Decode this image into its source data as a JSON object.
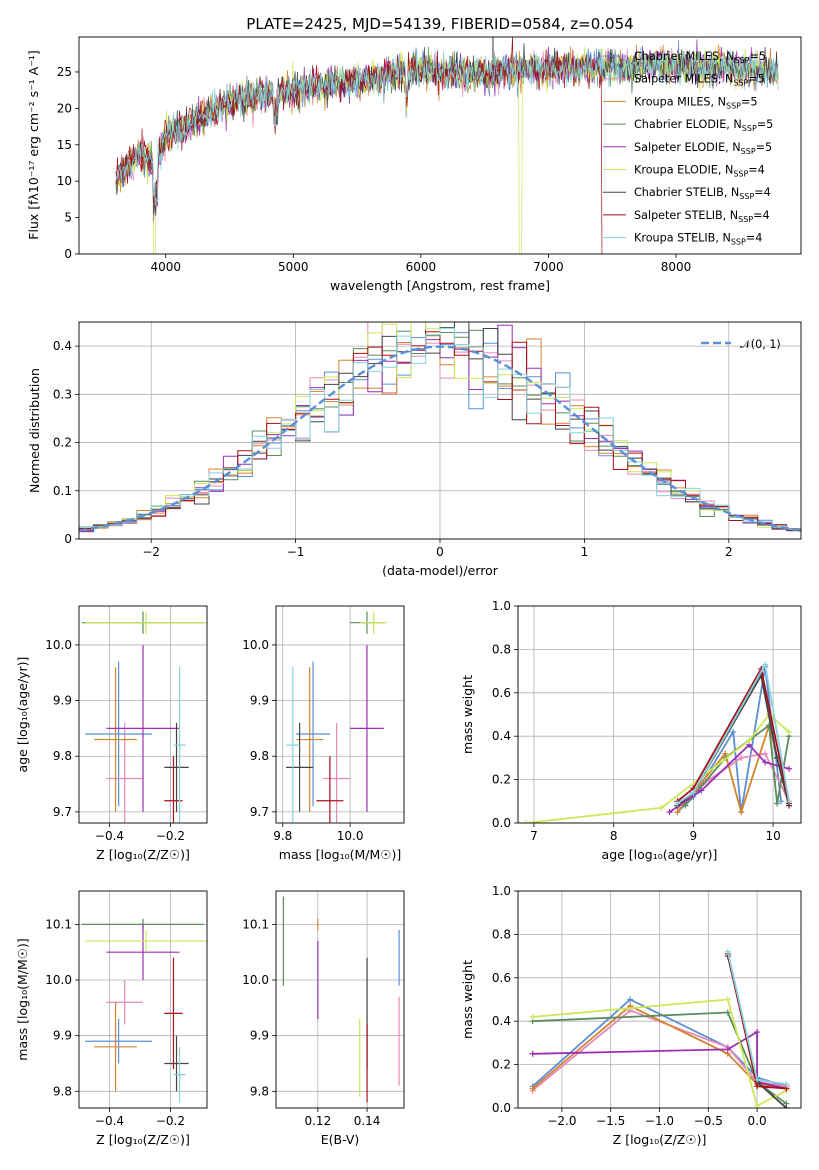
{
  "chart_data": [
    {
      "type": "line",
      "title": "PLATE=2425, MJD=54139, FIBERID=0584, z=0.054",
      "xlabel": "wavelength [Angstrom, rest frame]",
      "ylabel_main": "Flux [f",
      "ylabel_sub": "λ",
      "ylabel_mid": "10",
      "ylabel_exp": "−17",
      "ylabel_tail": " erg cm",
      "ylabel_exp2": "−2",
      "ylabel_tail2": " s",
      "ylabel_exp3": "−1",
      "ylabel_tail3": " A",
      "ylabel_exp4": "−1",
      "ylabel_end": "]",
      "xlim": [
        3320,
        8980
      ],
      "ylim": [
        0,
        29.8
      ],
      "xticks": [
        4000,
        5000,
        6000,
        7000,
        8000
      ],
      "yticks": [
        0,
        5,
        10,
        15,
        20,
        25
      ],
      "grid": false,
      "legend_position": "top-right",
      "continuum": [
        [
          3600,
          10
        ],
        [
          3700,
          12
        ],
        [
          3800,
          14
        ],
        [
          3900,
          12
        ],
        [
          4000,
          16
        ],
        [
          4200,
          18
        ],
        [
          4400,
          20
        ],
        [
          4600,
          21.5
        ],
        [
          4800,
          22
        ],
        [
          5000,
          22.5
        ],
        [
          5200,
          23
        ],
        [
          5400,
          23.5
        ],
        [
          5600,
          24
        ],
        [
          5800,
          25
        ],
        [
          6000,
          25.5
        ],
        [
          6200,
          25
        ],
        [
          6400,
          24.5
        ],
        [
          6600,
          25
        ],
        [
          6800,
          25.3
        ],
        [
          7000,
          25.5
        ],
        [
          7200,
          25.5
        ],
        [
          7400,
          25.8
        ],
        [
          7600,
          25.5
        ],
        [
          7800,
          26
        ],
        [
          8000,
          25.8
        ],
        [
          8200,
          25.5
        ],
        [
          8400,
          26
        ],
        [
          8600,
          25.3
        ],
        [
          8800,
          25
        ]
      ],
      "series": [
        {
          "name": "Chabrier MILES",
          "nssp": "5",
          "color": "#5b8fd6"
        },
        {
          "name": "Salpeter MILES",
          "nssp": "5",
          "color": "#e889b8"
        },
        {
          "name": "Kroupa MILES",
          "nssp": "5",
          "color": "#d5832e"
        },
        {
          "name": "Chabrier ELODIE",
          "nssp": "5",
          "color": "#5b8c5b"
        },
        {
          "name": "Salpeter ELODIE",
          "nssp": "5",
          "color": "#9b2fb5"
        },
        {
          "name": "Kroupa ELODIE",
          "nssp": "4",
          "color": "#cbe85a"
        },
        {
          "name": "Chabrier STELIB",
          "nssp": "4",
          "color": "#444444"
        },
        {
          "name": "Salpeter STELIB",
          "nssp": "4",
          "color": "#a8101a"
        },
        {
          "name": "Kroupa STELIB",
          "nssp": "4",
          "color": "#86d2da"
        }
      ]
    },
    {
      "type": "line",
      "title": "",
      "xlabel": "(data-model)/error",
      "ylabel": "Normed distribution",
      "xlim": [
        -2.5,
        2.5
      ],
      "ylim": [
        0,
        0.45
      ],
      "xticks": [
        -2,
        -1,
        0,
        1,
        2
      ],
      "yticks": [
        0.0,
        0.1,
        0.2,
        0.3,
        0.4
      ],
      "grid": true,
      "legend_position": "top-right",
      "legend_label": "𝒩(0, 1)",
      "gaussian": {
        "mean": 0,
        "sigma": 1,
        "color": "#5b8fd6"
      },
      "bin_width": 0.1
    },
    {
      "type": "scatter",
      "title": "",
      "xlabel": "Z [log₁₀(Z/Z☉)]",
      "ylabel": "age  [log₁₀(age/yr)]",
      "xlim": [
        -0.5,
        -0.08
      ],
      "ylim": [
        9.68,
        10.07
      ],
      "xticks": [
        -0.4,
        -0.2
      ],
      "yticks": [
        9.7,
        9.8,
        9.9,
        10.0
      ],
      "grid": true,
      "points": [
        {
          "x": -0.37,
          "y": 9.84,
          "xerr": 0.11,
          "yerr": 0.13
        },
        {
          "x": -0.35,
          "y": 9.76,
          "xerr": 0.06,
          "yerr": 0.1
        },
        {
          "x": -0.38,
          "y": 9.83,
          "xerr": 0.07,
          "yerr": 0.13
        },
        {
          "x": -0.29,
          "y": 10.04,
          "xerr": 0.2,
          "yerr": 0.02
        },
        {
          "x": -0.29,
          "y": 9.85,
          "xerr": 0.12,
          "yerr": 0.15
        },
        {
          "x": -0.28,
          "y": 10.04,
          "xerr": 0.2,
          "yerr": 0.02
        },
        {
          "x": -0.18,
          "y": 9.78,
          "xerr": 0.04,
          "yerr": 0.08
        },
        {
          "x": -0.19,
          "y": 9.72,
          "xerr": 0.03,
          "yerr": 0.08
        },
        {
          "x": -0.17,
          "y": 9.82,
          "xerr": 0.02,
          "yerr": 0.14
        }
      ]
    },
    {
      "type": "scatter",
      "title": "",
      "xlabel": "mass [log₁₀(M/M☉)]",
      "ylabel": "",
      "xlim": [
        9.78,
        10.16
      ],
      "ylim": [
        9.68,
        10.07
      ],
      "xticks": [
        9.8,
        10.0
      ],
      "yticks": [
        9.7,
        9.8,
        9.9,
        10.0
      ],
      "grid": true,
      "points": [
        {
          "x": 9.89,
          "y": 9.84,
          "xerr": 0.05,
          "yerr": 0.13
        },
        {
          "x": 9.96,
          "y": 9.76,
          "xerr": 0.04,
          "yerr": 0.1
        },
        {
          "x": 9.88,
          "y": 9.83,
          "xerr": 0.04,
          "yerr": 0.13
        },
        {
          "x": 10.05,
          "y": 10.04,
          "xerr": 0.05,
          "yerr": 0.02
        },
        {
          "x": 10.05,
          "y": 9.85,
          "xerr": 0.05,
          "yerr": 0.15
        },
        {
          "x": 10.07,
          "y": 10.04,
          "xerr": 0.04,
          "yerr": 0.02
        },
        {
          "x": 9.85,
          "y": 9.78,
          "xerr": 0.04,
          "yerr": 0.08
        },
        {
          "x": 9.94,
          "y": 9.72,
          "xerr": 0.04,
          "yerr": 0.08
        },
        {
          "x": 9.83,
          "y": 9.82,
          "xerr": 0.02,
          "yerr": 0.14
        }
      ]
    },
    {
      "type": "line",
      "title": "",
      "xlabel": "age  [log₁₀(age/yr)]",
      "ylabel": "mass weight",
      "xlim": [
        6.8,
        10.35
      ],
      "ylim": [
        0,
        1.0
      ],
      "xticks": [
        7,
        8,
        9,
        10
      ],
      "yticks": [
        0.0,
        0.2,
        0.4,
        0.6,
        0.8,
        1.0
      ],
      "grid": true,
      "series": [
        {
          "points": [
            [
              8.8,
              0.05
            ],
            [
              9.0,
              0.12
            ],
            [
              9.5,
              0.42
            ],
            [
              9.6,
              0.05
            ],
            [
              9.9,
              0.72
            ],
            [
              10.1,
              0.1
            ]
          ]
        },
        {
          "points": [
            [
              8.8,
              0.07
            ],
            [
              9.2,
              0.2
            ],
            [
              9.6,
              0.3
            ],
            [
              9.9,
              0.32
            ],
            [
              10.2,
              0.1
            ]
          ]
        },
        {
          "points": [
            [
              8.8,
              0.05
            ],
            [
              9.4,
              0.32
            ],
            [
              9.6,
              0.05
            ],
            [
              9.95,
              0.45
            ],
            [
              10.2,
              0.08
            ]
          ]
        },
        {
          "points": [
            [
              8.9,
              0.08
            ],
            [
              9.4,
              0.3
            ],
            [
              9.95,
              0.45
            ],
            [
              10.05,
              0.09
            ],
            [
              10.2,
              0.4
            ]
          ]
        },
        {
          "points": [
            [
              8.7,
              0.05
            ],
            [
              9.1,
              0.15
            ],
            [
              9.7,
              0.36
            ],
            [
              9.9,
              0.28
            ],
            [
              10.2,
              0.25
            ]
          ]
        },
        {
          "points": [
            [
              6.9,
              0.0
            ],
            [
              8.6,
              0.07
            ],
            [
              9.7,
              0.38
            ],
            [
              9.95,
              0.5
            ],
            [
              10.2,
              0.42
            ]
          ]
        },
        {
          "points": [
            [
              8.8,
              0.08
            ],
            [
              9.0,
              0.14
            ],
            [
              9.85,
              0.68
            ],
            [
              10.05,
              0.3
            ],
            [
              10.2,
              0.08
            ]
          ]
        },
        {
          "points": [
            [
              8.8,
              0.1
            ],
            [
              9.0,
              0.16
            ],
            [
              9.85,
              0.71
            ],
            [
              10.2,
              0.09
            ]
          ]
        },
        {
          "points": [
            [
              8.8,
              0.09
            ],
            [
              9.0,
              0.14
            ],
            [
              9.9,
              0.73
            ],
            [
              10.2,
              0.1
            ]
          ]
        }
      ]
    },
    {
      "type": "scatter",
      "title": "",
      "xlabel": "Z [log₁₀(Z/Z☉)]",
      "ylabel": "mass [log₁₀(M/M☉)]",
      "xlim": [
        -0.5,
        -0.08
      ],
      "ylim": [
        9.77,
        10.16
      ],
      "xticks": [
        -0.4,
        -0.2
      ],
      "yticks": [
        9.8,
        9.9,
        10.0,
        10.1
      ],
      "grid": true,
      "points": [
        {
          "x": -0.37,
          "y": 9.89,
          "xerr": 0.11,
          "yerr": 0.04
        },
        {
          "x": -0.35,
          "y": 9.96,
          "xerr": 0.06,
          "yerr": 0.04
        },
        {
          "x": -0.38,
          "y": 9.88,
          "xerr": 0.07,
          "yerr": 0.08
        },
        {
          "x": -0.29,
          "y": 10.1,
          "xerr": 0.2,
          "yerr": 0.01
        },
        {
          "x": -0.29,
          "y": 10.05,
          "xerr": 0.12,
          "yerr": 0.05
        },
        {
          "x": -0.28,
          "y": 10.07,
          "xerr": 0.2,
          "yerr": 0.02
        },
        {
          "x": -0.18,
          "y": 9.85,
          "xerr": 0.04,
          "yerr": 0.05
        },
        {
          "x": -0.19,
          "y": 9.94,
          "xerr": 0.03,
          "yerr": 0.1
        },
        {
          "x": -0.17,
          "y": 9.83,
          "xerr": 0.02,
          "yerr": 0.05
        }
      ]
    },
    {
      "type": "scatter",
      "title": "",
      "xlabel": "E(B-V)",
      "ylabel": "",
      "xlim": [
        0.103,
        0.155
      ],
      "ylim": [
        9.77,
        10.16
      ],
      "xticks": [
        0.12,
        0.14
      ],
      "yticks": [
        9.8,
        9.9,
        10.0,
        10.1
      ],
      "grid": true,
      "points": [
        {
          "x": 0.153,
          "y": 10.04,
          "yerr": 0.05
        },
        {
          "x": 0.153,
          "y": 9.89,
          "yerr": 0.08
        },
        {
          "x": 0.12,
          "y": 10.1,
          "yerr": 0.01
        },
        {
          "x": 0.106,
          "y": 10.07,
          "yerr": 0.08
        },
        {
          "x": 0.12,
          "y": 10.0,
          "yerr": 0.07
        },
        {
          "x": 0.137,
          "y": 9.86,
          "yerr": 0.07
        },
        {
          "x": 0.14,
          "y": 9.94,
          "yerr": 0.1
        },
        {
          "x": 0.14,
          "y": 9.85,
          "yerr": 0.07
        }
      ]
    },
    {
      "type": "line",
      "title": "",
      "xlabel": "Z [log₁₀(Z/Z☉)]",
      "ylabel": "mass weight",
      "xlim": [
        -2.45,
        0.45
      ],
      "ylim": [
        0,
        1.0
      ],
      "xticks": [
        -2.0,
        -1.5,
        -1.0,
        -0.5,
        0.0
      ],
      "yticks": [
        0.0,
        0.2,
        0.4,
        0.6,
        0.8,
        1.0
      ],
      "grid": true,
      "series": [
        {
          "points": [
            [
              -2.3,
              0.1
            ],
            [
              -1.3,
              0.5
            ],
            [
              -0.3,
              0.28
            ],
            [
              0.0,
              0.14
            ],
            [
              0.3,
              0.1
            ]
          ]
        },
        {
          "points": [
            [
              -2.3,
              0.08
            ],
            [
              -1.3,
              0.45
            ],
            [
              -0.3,
              0.28
            ],
            [
              0.0,
              0.12
            ],
            [
              0.3,
              0.1
            ]
          ]
        },
        {
          "points": [
            [
              -2.3,
              0.09
            ],
            [
              -1.3,
              0.47
            ],
            [
              -0.3,
              0.25
            ],
            [
              0.0,
              0.11
            ],
            [
              0.3,
              0.09
            ]
          ]
        },
        {
          "points": [
            [
              -2.3,
              0.4
            ],
            [
              -0.3,
              0.44
            ],
            [
              0.0,
              0.12
            ],
            [
              0.3,
              0.02
            ]
          ]
        },
        {
          "points": [
            [
              -2.3,
              0.25
            ],
            [
              -0.3,
              0.27
            ],
            [
              0.0,
              0.35
            ],
            [
              0.0,
              0.12
            ],
            [
              0.3,
              0.09
            ]
          ]
        },
        {
          "points": [
            [
              -2.3,
              0.42
            ],
            [
              -0.3,
              0.5
            ],
            [
              0.0,
              0.01
            ],
            [
              0.3,
              0.08
            ]
          ]
        },
        {
          "points": [
            [
              -0.3,
              0.7
            ],
            [
              0.0,
              0.12
            ],
            [
              0.3,
              0.0
            ]
          ]
        },
        {
          "points": [
            [
              -0.3,
              0.71
            ],
            [
              0.0,
              0.1
            ],
            [
              0.3,
              0.09
            ]
          ]
        },
        {
          "points": [
            [
              -0.3,
              0.72
            ],
            [
              0.0,
              0.13
            ],
            [
              0.3,
              0.11
            ]
          ]
        }
      ]
    }
  ],
  "panels": {
    "p1_ylabel": "Flux [fλ10⁻¹⁷ erg cm⁻² s⁻¹ A⁻¹]",
    "legend_entries": [
      "Chabrier MILES, N_SSP=5",
      "Salpeter MILES, N_SSP=5",
      "Kroupa MILES, N_SSP=5",
      "Chabrier ELODIE, N_SSP=5",
      "Salpeter ELODIE, N_SSP=5",
      "Kroupa ELODIE, N_SSP=4",
      "Chabrier STELIB, N_SSP=4",
      "Salpeter STELIB, N_SSP=4",
      "Kroupa STELIB, N_SSP=4"
    ]
  }
}
